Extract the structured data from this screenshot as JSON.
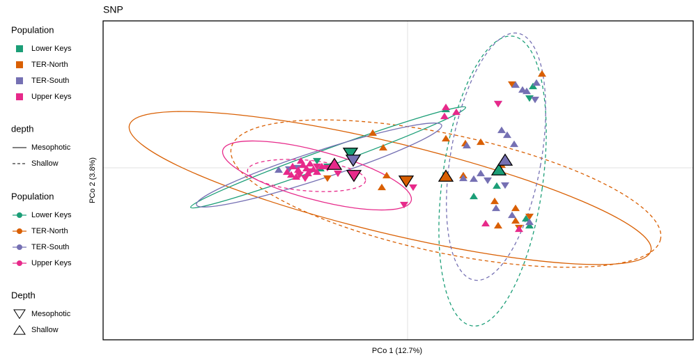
{
  "chart_data": {
    "type": "scatter",
    "title": "SNP",
    "xlabel": "PCo 1 (12.7%)",
    "ylabel": "PCo 2 (3.8%)",
    "xlim": [
      -4.37,
      4.1
    ],
    "ylim": [
      -2.47,
      2.11
    ],
    "xgrid": [
      0
    ],
    "ygrid": [
      0
    ],
    "shapes": {
      "Mesophotic": "down",
      "Shallow": "up"
    },
    "linetypes": {
      "Mesophotic": "solid",
      "Shallow": "dashed"
    },
    "legends": [
      {
        "title": "Population",
        "kind": "square",
        "entries": [
          {
            "name": "Lower Keys",
            "color": "#1b9e77"
          },
          {
            "name": "TER-North",
            "color": "#d95f02"
          },
          {
            "name": "TER-South",
            "color": "#7570b3"
          },
          {
            "name": "Upper Keys",
            "color": "#e7298a"
          }
        ]
      },
      {
        "title": "depth",
        "kind": "line",
        "entries": [
          {
            "name": "Mesophotic"
          },
          {
            "name": "Shallow"
          }
        ]
      },
      {
        "title": "Population",
        "kind": "line-point",
        "entries": [
          {
            "name": "Lower Keys",
            "color": "#1b9e77"
          },
          {
            "name": "TER-North",
            "color": "#d95f02"
          },
          {
            "name": "TER-South",
            "color": "#7570b3"
          },
          {
            "name": "Upper Keys",
            "color": "#e7298a"
          }
        ]
      },
      {
        "title": "Depth",
        "kind": "shape",
        "entries": [
          {
            "name": "Mesophotic"
          },
          {
            "name": "Shallow"
          }
        ]
      }
    ],
    "series": [
      {
        "population": "TER-North",
        "depth": "Mesophotic",
        "color": "#d95f02",
        "x": [
          1.75,
          1.6,
          1.5,
          -1.15
        ],
        "y": [
          -0.69,
          -0.85,
          1.21,
          -0.14
        ],
        "centroid": [
          -0.02,
          -0.17
        ],
        "ellipse": {
          "cx": -0.25,
          "cy": -0.29,
          "rx": 3.85,
          "ry": 0.65,
          "angle": -13.5
        }
      },
      {
        "population": "TER-North",
        "depth": "Shallow",
        "color": "#d95f02",
        "x": [
          -0.5,
          -0.35,
          -0.37,
          -0.3,
          0.55,
          0.83,
          1.05,
          1.25,
          1.3,
          1.93,
          1.55,
          0.8,
          1.55,
          1.35
        ],
        "y": [
          0.49,
          0.28,
          -0.29,
          -0.12,
          0.41,
          0.34,
          0.36,
          -0.49,
          -0.84,
          1.34,
          -0.59,
          -0.12,
          -0.77,
          0.03
        ],
        "centroid": [
          0.55,
          -0.14
        ],
        "ellipse": {
          "cx": 0.55,
          "cy": -0.37,
          "rx": 3.15,
          "ry": 0.85,
          "angle": -12
        }
      },
      {
        "population": "Lower Keys",
        "depth": "Mesophotic",
        "color": "#1b9e77",
        "x": [
          -1.3,
          1.75,
          -1.15
        ],
        "y": [
          0.11,
          1.01,
          0.03
        ],
        "centroid": [
          -0.82,
          0.23
        ],
        "ellipse": {
          "cx": -1.14,
          "cy": 0.15,
          "rx": 2.1,
          "ry": 0.12,
          "angle": 20
        }
      },
      {
        "population": "Lower Keys",
        "depth": "Shallow",
        "color": "#1b9e77",
        "x": [
          0.95,
          1.75,
          1.8,
          0.55,
          -1.25,
          1.7,
          1.28
        ],
        "y": [
          -0.42,
          -0.84,
          1.16,
          0.83,
          -0.02,
          -0.74,
          -0.27
        ],
        "centroid": [
          1.31,
          -0.05
        ],
        "ellipse": {
          "cx": 1.22,
          "cy": -0.19,
          "rx": 0.72,
          "ry": 2.1,
          "angle": -8
        }
      },
      {
        "population": "TER-South",
        "depth": "Mesophotic",
        "color": "#7570b3",
        "x": [
          1.4,
          1.83,
          1.3,
          -1.7,
          -1.58,
          1.15
        ],
        "y": [
          -0.24,
          0.99,
          0.93,
          -0.01,
          0.01,
          -0.17
        ],
        "centroid": [
          -0.78,
          0.13
        ],
        "ellipse": {
          "cx": -1.27,
          "cy": 0.04,
          "rx": 1.85,
          "ry": 0.2,
          "angle": 18
        }
      },
      {
        "population": "TER-South",
        "depth": "Shallow",
        "color": "#7570b3",
        "x": [
          1.35,
          1.43,
          1.53,
          0.8,
          0.95,
          1.05,
          1.55,
          1.65,
          1.71,
          1.85,
          1.27,
          1.75,
          1.5,
          -1.85,
          0.85
        ],
        "y": [
          0.53,
          0.46,
          0.33,
          -0.16,
          -0.17,
          -0.09,
          1.18,
          1.11,
          1.09,
          1.21,
          -0.59,
          -0.79,
          -0.69,
          -0.04,
          0.31
        ],
        "centroid": [
          1.4,
          0.09
        ],
        "ellipse": {
          "cx": 1.27,
          "cy": 0.16,
          "rx": 0.65,
          "ry": 1.8,
          "angle": -10
        }
      },
      {
        "population": "Upper Keys",
        "depth": "Mesophotic",
        "color": "#e7298a",
        "x": [
          -0.05,
          0.08,
          1.3,
          -1.55,
          -1.4,
          -1.15,
          -1.0,
          -1.3,
          -1.47
        ],
        "y": [
          -0.52,
          -0.27,
          0.93,
          -0.09,
          -0.04,
          0.01,
          -0.07,
          0.03,
          -0.14
        ],
        "centroid": [
          -0.77,
          -0.09
        ],
        "ellipse": {
          "cx": -1.3,
          "cy": -0.11,
          "rx": 1.4,
          "ry": 0.35,
          "angle": -15
        }
      },
      {
        "population": "Upper Keys",
        "depth": "Shallow",
        "color": "#e7298a",
        "x": [
          0.55,
          0.7,
          0.53,
          1.12,
          1.6,
          -1.73,
          -1.65,
          -1.57,
          -1.5,
          -1.43,
          -1.35,
          -1.67,
          -1.53,
          -1.4,
          -1.3,
          -1.6,
          -1.23,
          -1.45
        ],
        "y": [
          0.86,
          0.79,
          0.73,
          -0.81,
          -0.89,
          -0.07,
          0.01,
          -0.04,
          0.03,
          -0.09,
          -0.03,
          -0.11,
          0.09,
          0.05,
          -0.07,
          -0.14,
          0.01,
          -0.02
        ],
        "centroid": [
          -1.05,
          0.03
        ],
        "ellipse": {
          "cx": -1.45,
          "cy": -0.11,
          "rx": 0.85,
          "ry": 0.22,
          "angle": -5
        }
      }
    ]
  }
}
